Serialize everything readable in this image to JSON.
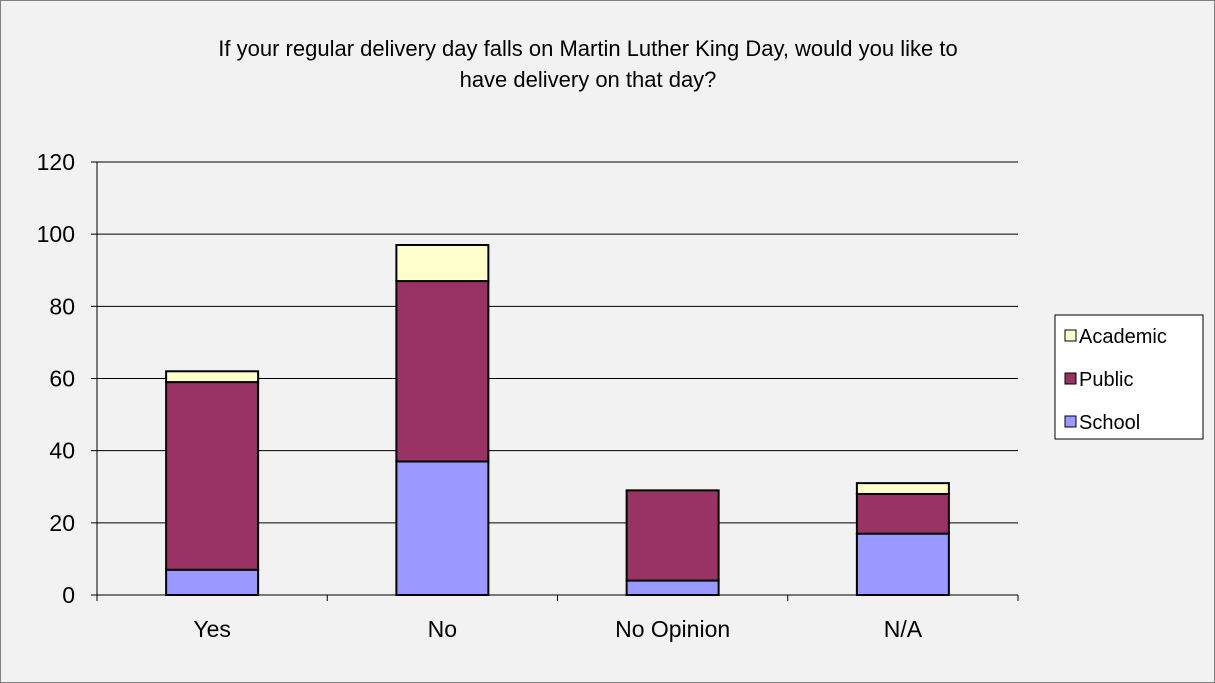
{
  "chart_data": {
    "type": "bar",
    "stacked": true,
    "title_lines": [
      "If your regular delivery day falls on Martin Luther King Day, would you like to",
      "have delivery on that day?"
    ],
    "categories": [
      "Yes",
      "No",
      "No Opinion",
      "N/A"
    ],
    "series": [
      {
        "name": "School",
        "values": [
          7,
          37,
          4,
          17
        ],
        "color": "#9999ff"
      },
      {
        "name": "Public",
        "values": [
          52,
          50,
          25,
          11
        ],
        "color": "#993366"
      },
      {
        "name": "Academic",
        "values": [
          3,
          10,
          0,
          3
        ],
        "color": "#ffffcc"
      }
    ],
    "ylim": [
      0,
      120
    ],
    "yticks": [
      0,
      20,
      40,
      60,
      80,
      100,
      120
    ],
    "grid": true,
    "legend_position": "right",
    "legend_order": [
      "Academic",
      "Public",
      "School"
    ],
    "colors": {
      "background": "#f2f2f2",
      "gridline": "#000000",
      "border": "#808080"
    }
  }
}
